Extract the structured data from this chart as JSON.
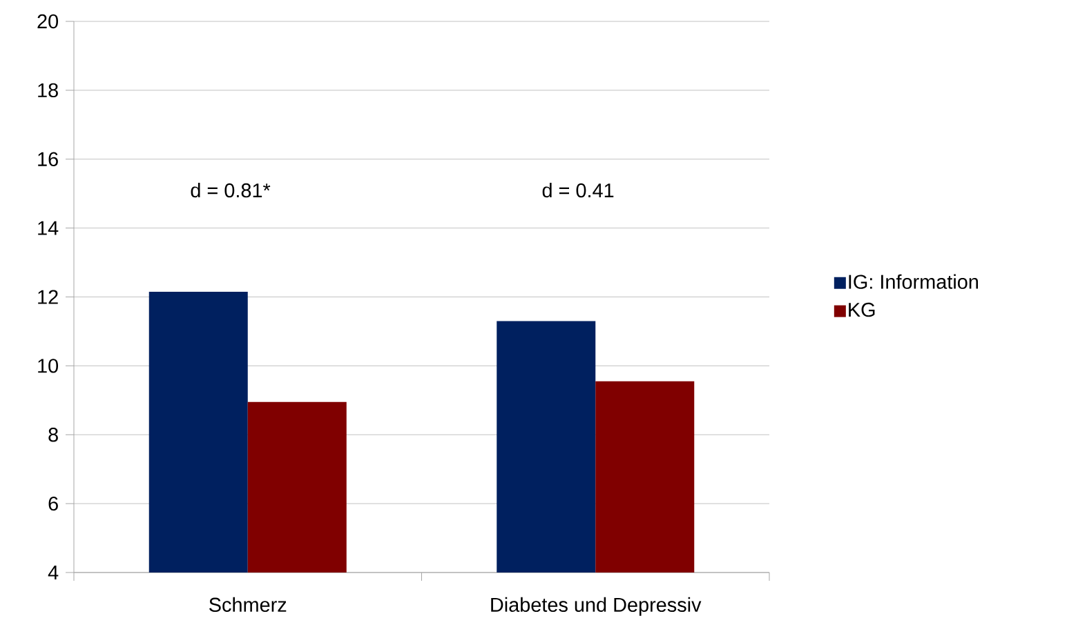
{
  "chart_data": {
    "type": "bar",
    "categories": [
      "Schmerz",
      "Diabetes und Depressiv"
    ],
    "series": [
      {
        "name": "IG: Information",
        "color": "#00205f",
        "values": [
          12.15,
          11.3
        ]
      },
      {
        "name": "KG",
        "color": "#800000",
        "values": [
          8.95,
          9.55
        ]
      }
    ],
    "ylim": [
      4,
      20
    ],
    "yticks": [
      4,
      6,
      8,
      10,
      12,
      14,
      16,
      18,
      20
    ],
    "grid": "y",
    "legend": "right",
    "annotations": [
      "d = 0.81*",
      "d = 0.41"
    ]
  }
}
